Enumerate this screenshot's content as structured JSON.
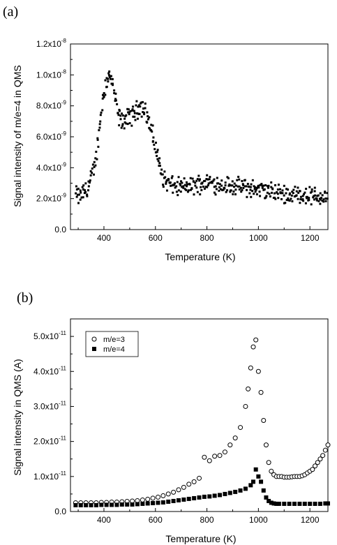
{
  "chart_data": [
    {
      "type": "scatter",
      "panel_label": "(a)",
      "title": "",
      "xlabel": "Temperature (K)",
      "ylabel": "Signal intensity of m/e=4 in QMS",
      "xlim": [
        270,
        1270
      ],
      "ylim": [
        0,
        1.2e-08
      ],
      "xticks": [
        400,
        600,
        800,
        1000,
        1200
      ],
      "xtick_labels": [
        "400",
        "600",
        "800",
        "1000",
        "1200"
      ],
      "yticks": [
        0,
        2e-09,
        4e-09,
        6e-09,
        8e-09,
        1e-08,
        1.2e-08
      ],
      "ytick_labels": [
        {
          "mantissa": "0.0",
          "exp": ""
        },
        {
          "mantissa": "2.0x10",
          "exp": "-9"
        },
        {
          "mantissa": "4.0x10",
          "exp": "-9"
        },
        {
          "mantissa": "6.0x10",
          "exp": "-9"
        },
        {
          "mantissa": "8.0x10",
          "exp": "-9"
        },
        {
          "mantissa": "1.0x10",
          "exp": "-8"
        },
        {
          "mantissa": "1.2x10",
          "exp": "-8"
        }
      ],
      "grid": false,
      "marker": "filled-square",
      "series": [
        {
          "x": [
            290,
            300,
            320,
            340,
            360,
            370,
            380,
            390,
            400,
            410,
            420,
            430,
            440,
            450,
            460,
            470,
            480,
            490,
            500,
            510,
            520,
            530,
            540,
            550,
            560,
            570,
            580,
            590,
            600,
            610,
            620,
            630,
            640,
            650,
            660,
            680,
            700,
            720,
            740,
            760,
            780,
            800,
            820,
            840,
            860,
            880,
            900,
            950,
            1000,
            1050,
            1100,
            1150,
            1200,
            1250,
            1270
          ],
          "values": [
            2.3e-09,
            2.1e-09,
            2.4e-09,
            2.8e-09,
            3.8e-09,
            4.8e-09,
            6.2e-09,
            7.8e-09,
            9e-09,
            9.6e-09,
            1e-08,
            9.6e-09,
            8.8e-09,
            7.8e-09,
            7.2e-09,
            7e-09,
            7.1e-09,
            7.2e-09,
            7.3e-09,
            7.4e-09,
            7.6e-09,
            7.8e-09,
            8e-09,
            7.9e-09,
            7.7e-09,
            7.2e-09,
            6.6e-09,
            6e-09,
            5.4e-09,
            4.6e-09,
            3.9e-09,
            3.4e-09,
            3.1e-09,
            3e-09,
            2.9e-09,
            2.8e-09,
            2.7e-09,
            2.8e-09,
            2.8e-09,
            2.9e-09,
            3e-09,
            3.1e-09,
            3e-09,
            2.95e-09,
            2.9e-09,
            2.85e-09,
            2.8e-09,
            2.7e-09,
            2.6e-09,
            2.45e-09,
            2.3e-09,
            2.25e-09,
            2.2e-09,
            2.1e-09,
            2.1e-09
          ]
        }
      ]
    },
    {
      "type": "scatter",
      "panel_label": "(b)",
      "title": "",
      "xlabel": "Temperature (K)",
      "ylabel": "Signal intensity in QMS (A)",
      "xlim": [
        270,
        1270
      ],
      "ylim": [
        0,
        5.5e-11
      ],
      "xticks": [
        400,
        600,
        800,
        1000,
        1200
      ],
      "xtick_labels": [
        "400",
        "600",
        "800",
        "1000",
        "1200"
      ],
      "yticks": [
        0,
        1e-11,
        2e-11,
        3e-11,
        4e-11,
        5e-11
      ],
      "ytick_labels": [
        {
          "mantissa": "0.0",
          "exp": ""
        },
        {
          "mantissa": "1.0x10",
          "exp": "-11"
        },
        {
          "mantissa": "2.0x10",
          "exp": "-11"
        },
        {
          "mantissa": "3.0x10",
          "exp": "-11"
        },
        {
          "mantissa": "4.0x10",
          "exp": "-11"
        },
        {
          "mantissa": "5.0x10",
          "exp": "-11"
        }
      ],
      "grid": false,
      "legend_position": "top-left",
      "series": [
        {
          "name": "m/e=3",
          "marker": "open-circle",
          "x": [
            290,
            310,
            330,
            350,
            370,
            390,
            410,
            430,
            450,
            470,
            490,
            510,
            530,
            550,
            570,
            590,
            610,
            630,
            650,
            670,
            690,
            710,
            730,
            750,
            770,
            790,
            810,
            830,
            850,
            870,
            890,
            910,
            930,
            950,
            960,
            970,
            980,
            990,
            1000,
            1010,
            1020,
            1030,
            1040,
            1050,
            1060,
            1070,
            1080,
            1090,
            1100,
            1110,
            1120,
            1130,
            1140,
            1150,
            1160,
            1170,
            1180,
            1190,
            1200,
            1210,
            1220,
            1230,
            1240,
            1250,
            1260,
            1270
          ],
          "values": [
            2.5e-12,
            2.5e-12,
            2.5e-12,
            2.5e-12,
            2.5e-12,
            2.6e-12,
            2.6e-12,
            2.7e-12,
            2.7e-12,
            2.8e-12,
            2.9e-12,
            3e-12,
            3.1e-12,
            3.3e-12,
            3.5e-12,
            3.8e-12,
            4.1e-12,
            4.5e-12,
            5e-12,
            5.5e-12,
            6.2e-12,
            6.9e-12,
            7.8e-12,
            8.5e-12,
            9.5e-12,
            1.55e-11,
            1.45e-11,
            1.58e-11,
            1.6e-11,
            1.7e-11,
            1.9e-11,
            2.1e-11,
            2.4e-11,
            3e-11,
            3.5e-11,
            4.1e-11,
            4.7e-11,
            4.9e-11,
            4e-11,
            3.4e-11,
            2.6e-11,
            1.9e-11,
            1.4e-11,
            1.15e-11,
            1.05e-11,
            1e-11,
            1e-11,
            1e-11,
            9.8e-12,
            9.8e-12,
            9.8e-12,
            9.9e-12,
            1e-11,
            1e-11,
            1e-11,
            1.02e-11,
            1.05e-11,
            1.1e-11,
            1.15e-11,
            1.2e-11,
            1.3e-11,
            1.4e-11,
            1.5e-11,
            1.6e-11,
            1.75e-11,
            1.9e-11
          ]
        },
        {
          "name": "m/e=4",
          "marker": "filled-square",
          "x": [
            290,
            310,
            330,
            350,
            370,
            390,
            410,
            430,
            450,
            470,
            490,
            510,
            530,
            550,
            570,
            590,
            610,
            630,
            650,
            670,
            690,
            710,
            730,
            750,
            770,
            790,
            810,
            830,
            850,
            870,
            890,
            910,
            930,
            950,
            970,
            980,
            990,
            1000,
            1010,
            1020,
            1030,
            1040,
            1050,
            1060,
            1070,
            1080,
            1100,
            1120,
            1140,
            1160,
            1180,
            1200,
            1220,
            1240,
            1260,
            1270
          ],
          "values": [
            1.8e-12,
            1.8e-12,
            1.8e-12,
            1.8e-12,
            1.8e-12,
            1.9e-12,
            1.9e-12,
            1.9e-12,
            1.9e-12,
            2e-12,
            2e-12,
            2e-12,
            2.1e-12,
            2.2e-12,
            2.3e-12,
            2.4e-12,
            2.5e-12,
            2.6e-12,
            2.8e-12,
            3e-12,
            3.2e-12,
            3.4e-12,
            3.6e-12,
            3.8e-12,
            4e-12,
            4.2e-12,
            4.3e-12,
            4.5e-12,
            4.7e-12,
            5e-12,
            5.3e-12,
            5.6e-12,
            6e-12,
            6.5e-12,
            7.5e-12,
            8.5e-12,
            1.2e-11,
            1e-11,
            8.5e-12,
            6e-12,
            4e-12,
            3e-12,
            2.5e-12,
            2.3e-12,
            2.2e-12,
            2.2e-12,
            2.2e-12,
            2.2e-12,
            2.2e-12,
            2.2e-12,
            2.2e-12,
            2.2e-12,
            2.2e-12,
            2.2e-12,
            2.3e-12,
            2.3e-12
          ]
        }
      ]
    }
  ]
}
